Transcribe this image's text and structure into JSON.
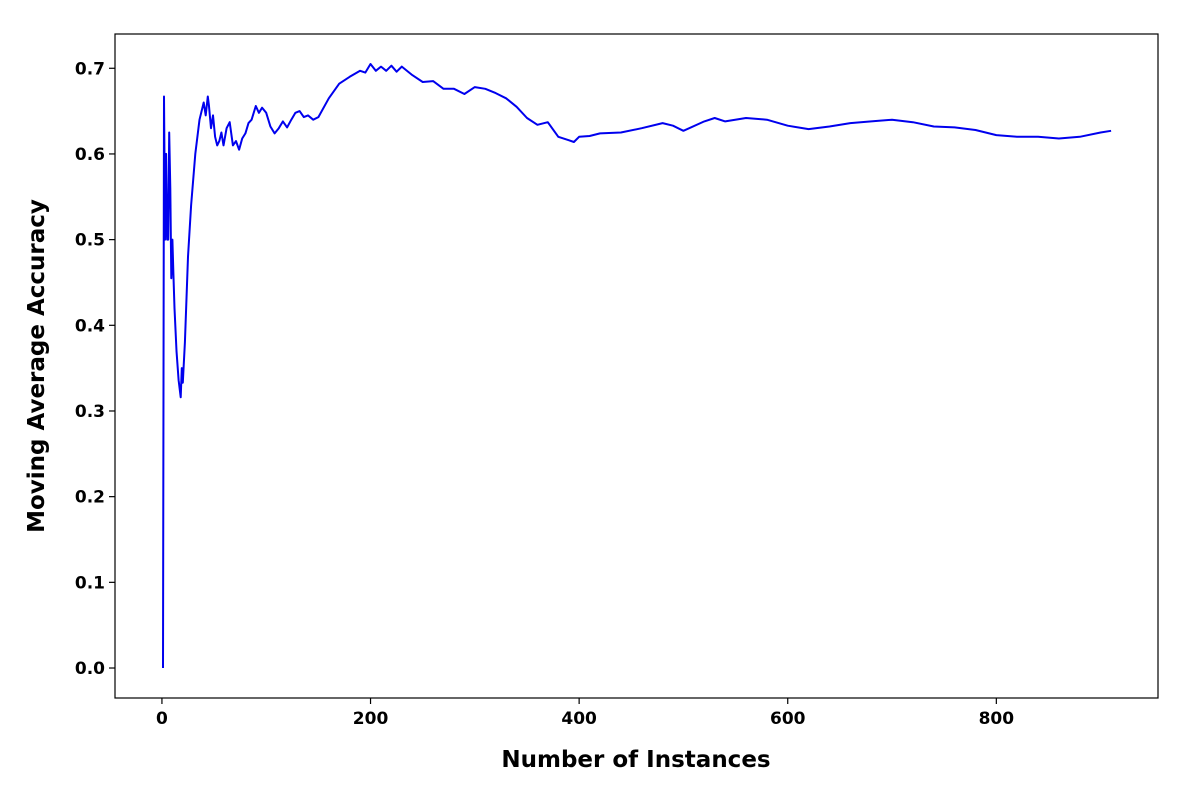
{
  "chart_data": {
    "type": "line",
    "title": "",
    "xlabel": "Number of Instances",
    "ylabel": "Moving Average Accuracy",
    "xlim": [
      -45,
      955
    ],
    "ylim": [
      -0.035,
      0.74
    ],
    "xticks": [
      0,
      200,
      400,
      600,
      800
    ],
    "xtick_labels": [
      "0",
      "200",
      "400",
      "600",
      "800"
    ],
    "yticks": [
      0.0,
      0.1,
      0.2,
      0.3,
      0.4,
      0.5,
      0.6,
      0.7
    ],
    "ytick_labels": [
      "0.0",
      "0.1",
      "0.2",
      "0.3",
      "0.4",
      "0.5",
      "0.6",
      "0.7"
    ],
    "grid": false,
    "legend": "none",
    "line_color": "#0000ee",
    "series": [
      {
        "x": [
          1,
          2,
          3,
          4,
          5,
          6,
          7,
          8,
          9,
          10,
          11,
          12,
          14,
          16,
          18,
          19,
          20,
          22,
          25,
          28,
          32,
          36,
          40,
          42,
          44,
          45,
          47,
          49,
          51,
          53,
          55,
          57,
          59,
          62,
          65,
          68,
          71,
          74,
          77,
          80,
          83,
          86,
          90,
          93,
          96,
          100,
          104,
          108,
          112,
          116,
          120,
          124,
          128,
          132,
          136,
          140,
          145,
          150,
          160,
          170,
          180,
          190,
          195,
          200,
          205,
          210,
          215,
          220,
          225,
          230,
          240,
          250,
          260,
          270,
          280,
          290,
          300,
          310,
          320,
          330,
          340,
          350,
          360,
          370,
          380,
          390,
          395,
          400,
          410,
          420,
          440,
          460,
          480,
          490,
          500,
          520,
          530,
          540,
          560,
          580,
          600,
          620,
          640,
          660,
          680,
          700,
          720,
          740,
          760,
          780,
          800,
          820,
          840,
          860,
          880,
          900,
          910
        ],
        "y": [
          0.0,
          0.667,
          0.5,
          0.6,
          0.5,
          0.5,
          0.625,
          0.56,
          0.455,
          0.5,
          0.46,
          0.42,
          0.37,
          0.336,
          0.316,
          0.35,
          0.333,
          0.38,
          0.48,
          0.54,
          0.6,
          0.64,
          0.66,
          0.645,
          0.667,
          0.657,
          0.63,
          0.645,
          0.62,
          0.61,
          0.615,
          0.625,
          0.61,
          0.63,
          0.637,
          0.61,
          0.615,
          0.605,
          0.618,
          0.624,
          0.636,
          0.64,
          0.656,
          0.648,
          0.654,
          0.648,
          0.632,
          0.624,
          0.63,
          0.638,
          0.631,
          0.64,
          0.648,
          0.65,
          0.643,
          0.645,
          0.64,
          0.643,
          0.665,
          0.682,
          0.69,
          0.697,
          0.695,
          0.705,
          0.697,
          0.702,
          0.697,
          0.703,
          0.696,
          0.702,
          0.692,
          0.684,
          0.685,
          0.676,
          0.676,
          0.67,
          0.678,
          0.676,
          0.671,
          0.665,
          0.655,
          0.642,
          0.634,
          0.637,
          0.62,
          0.616,
          0.614,
          0.62,
          0.621,
          0.624,
          0.625,
          0.63,
          0.636,
          0.633,
          0.627,
          0.638,
          0.642,
          0.638,
          0.642,
          0.64,
          0.633,
          0.629,
          0.632,
          0.636,
          0.638,
          0.64,
          0.637,
          0.632,
          0.631,
          0.628,
          0.622,
          0.62,
          0.62,
          0.618,
          0.62,
          0.625,
          0.627
        ]
      }
    ]
  }
}
